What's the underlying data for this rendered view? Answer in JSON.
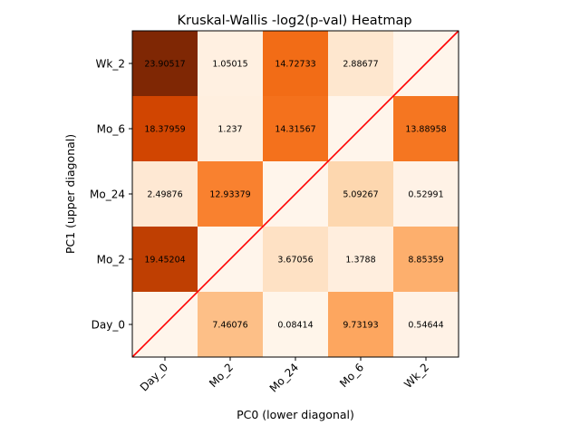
{
  "chart_data": {
    "type": "heatmap",
    "title": "Kruskal-Wallis -log2(p-val) Heatmap",
    "xlabel": "PC0 (lower diagonal)",
    "ylabel": "PC1 (upper diagonal)",
    "x_categories": [
      "Day_0",
      "Mo_2",
      "Mo_24",
      "Mo_6",
      "Wk_2"
    ],
    "y_categories_top_to_bottom": [
      "Wk_2",
      "Mo_6",
      "Mo_24",
      "Mo_2",
      "Day_0"
    ],
    "values": [
      [
        23.90517,
        1.05015,
        14.72733,
        2.88677,
        null
      ],
      [
        18.37959,
        1.237,
        14.31567,
        null,
        13.88958
      ],
      [
        2.49876,
        12.93379,
        null,
        5.09267,
        0.52991
      ],
      [
        19.45204,
        null,
        3.67056,
        1.3788,
        8.85359
      ],
      [
        null,
        7.46076,
        0.08414,
        9.73193,
        0.54644
      ]
    ],
    "value_labels": [
      [
        "23.90517",
        "1.05015",
        "14.72733",
        "2.88677",
        ""
      ],
      [
        "18.37959",
        "1.237",
        "14.31567",
        "",
        "13.88958"
      ],
      [
        "2.49876",
        "12.93379",
        "",
        "5.09267",
        "0.52991"
      ],
      [
        "19.45204",
        "",
        "3.67056",
        "1.3788",
        "8.85359"
      ],
      [
        "",
        "7.46076",
        "0.08414",
        "9.73193",
        "0.54644"
      ]
    ],
    "colormap": "Oranges",
    "value_range": [
      0,
      23.90517
    ],
    "diagonal_line_color": "#ff0000",
    "grid": false,
    "legend": "none"
  }
}
